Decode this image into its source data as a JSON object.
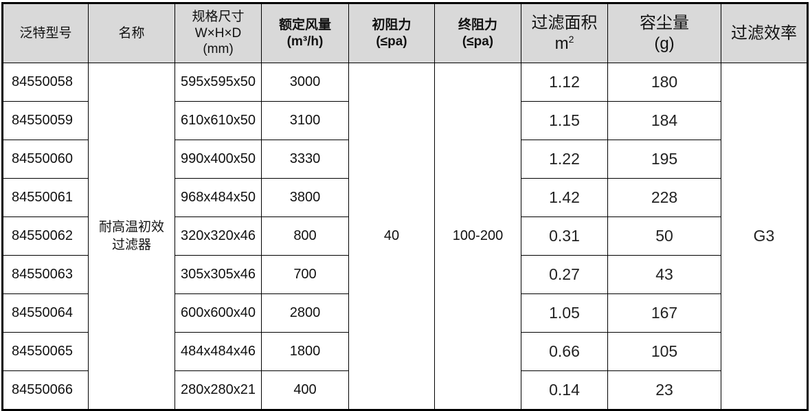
{
  "headers": {
    "model": "泛特型号",
    "name": "名称",
    "size_line1": "规格尺寸",
    "size_line2": "W×H×D",
    "size_line3": "(mm)",
    "airflow_line1": "额定风量",
    "airflow_line2": "(m³/h)",
    "init_res_line1": "初阻力",
    "init_res_line2": "(≤pa)",
    "final_res_line1": "终阻力",
    "final_res_line2": "(≤pa)",
    "area_line1": "过滤面积",
    "area_line2": "m",
    "area_sup": "2",
    "dust_line1": "容尘量",
    "dust_line2": "(g)",
    "efficiency": "过滤效率"
  },
  "merged": {
    "name_line1": "耐高温初效",
    "name_line2": "过滤器",
    "initial_resistance": "40",
    "final_resistance": "100-200",
    "efficiency": "G3"
  },
  "rows": [
    {
      "model": "84550058",
      "size": "595x595x50",
      "airflow": "3000",
      "area": "1.12",
      "dust": "180"
    },
    {
      "model": "84550059",
      "size": "610x610x50",
      "airflow": "3100",
      "area": "1.15",
      "dust": "184"
    },
    {
      "model": "84550060",
      "size": "990x400x50",
      "airflow": "3330",
      "area": "1.22",
      "dust": "195"
    },
    {
      "model": "84550061",
      "size": "968x484x50",
      "airflow": "3800",
      "area": "1.42",
      "dust": "228"
    },
    {
      "model": "84550062",
      "size": "320x320x46",
      "airflow": "800",
      "area": "0.31",
      "dust": "50"
    },
    {
      "model": "84550063",
      "size": "305x305x46",
      "airflow": "700",
      "area": "0.27",
      "dust": "43"
    },
    {
      "model": "84550064",
      "size": "600x600x40",
      "airflow": "2800",
      "area": "1.05",
      "dust": "167"
    },
    {
      "model": "84550065",
      "size": "484x484x46",
      "airflow": "1800",
      "area": "0.66",
      "dust": "105"
    },
    {
      "model": "84550066",
      "size": "280x280x21",
      "airflow": "400",
      "area": "0.14",
      "dust": "23"
    }
  ]
}
